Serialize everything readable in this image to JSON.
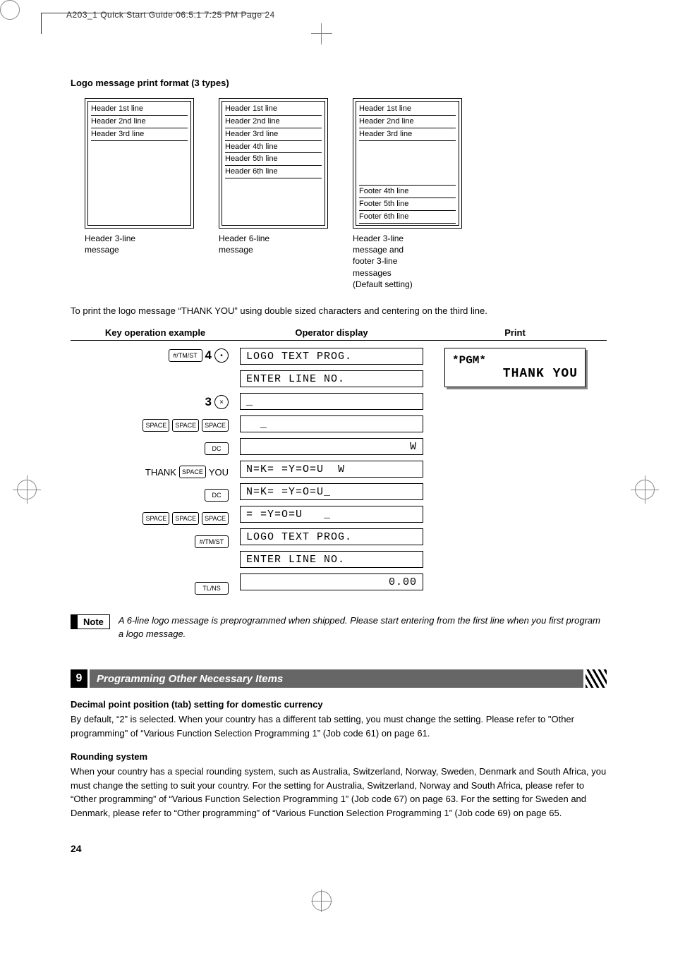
{
  "meta": {
    "top_line": "A203_1 Quick Start Guide  06.5.1 7:25 PM  Page 24"
  },
  "title_logo_format": "Logo message print format (3 types)",
  "formats": {
    "a": {
      "lines": [
        "Header 1st line",
        "Header 2nd line",
        "Header 3rd line"
      ],
      "caption": "Header 3-line\nmessage"
    },
    "b": {
      "lines": [
        "Header 1st line",
        "Header 2nd line",
        "Header 3rd line",
        "Header 4th line",
        "Header 5th line",
        "Header 6th line"
      ],
      "caption": "Header 6-line\nmessage"
    },
    "c": {
      "top": [
        "Header 1st line",
        "Header 2nd line",
        "Header 3rd line"
      ],
      "bottom": [
        "Footer 4th line",
        "Footer 5th line",
        "Footer 6th line"
      ],
      "caption": "Header 3-line\nmessage and\nfooter 3-line\nmessages\n(Default setting)"
    }
  },
  "intro_text": "To print the logo message “THANK YOU” using double sized characters and centering on the third line.",
  "table": {
    "headers": {
      "key": "Key operation example",
      "disp": "Operator display",
      "print": "Print"
    },
    "rows": [
      {
        "keys": [
          {
            "t": "btn",
            "v": "#/TM/ST",
            "wide": true
          },
          {
            "t": "num",
            "v": "4"
          },
          {
            "t": "circ",
            "v": "•"
          }
        ],
        "disp": "LOGO TEXT PROG."
      },
      {
        "keys": [],
        "disp": "ENTER LINE NO."
      },
      {
        "keys": [
          {
            "t": "num",
            "v": "3"
          },
          {
            "t": "circ",
            "v": "×"
          }
        ],
        "disp": "_"
      },
      {
        "keys": [
          {
            "t": "btn",
            "v": "SPACE"
          },
          {
            "t": "btn",
            "v": "SPACE"
          },
          {
            "t": "btn",
            "v": "SPACE"
          }
        ],
        "disp": "  _"
      },
      {
        "keys": [
          {
            "t": "btn",
            "v": "DC"
          }
        ],
        "disp": "              W",
        "right": true
      },
      {
        "keys": [
          {
            "t": "text",
            "v": "THANK"
          },
          {
            "t": "btn",
            "v": "SPACE"
          },
          {
            "t": "text",
            "v": "YOU"
          }
        ],
        "disp": "N=K= =Y=O=U  W"
      },
      {
        "keys": [
          {
            "t": "btn",
            "v": "DC"
          }
        ],
        "disp": "N=K= =Y=O=U_"
      },
      {
        "keys": [
          {
            "t": "btn",
            "v": "SPACE"
          },
          {
            "t": "btn",
            "v": "SPACE"
          },
          {
            "t": "btn",
            "v": "SPACE"
          }
        ],
        "disp": "= =Y=O=U   _"
      },
      {
        "keys": [
          {
            "t": "btn",
            "v": "#/TM/ST",
            "wide": true
          }
        ],
        "disp": "LOGO TEXT PROG."
      },
      {
        "keys": [],
        "disp": "ENTER LINE NO."
      },
      {
        "keys": [
          {
            "t": "btn",
            "v": "TL/NS",
            "wide": true
          }
        ],
        "disp": "0.00",
        "right": true
      }
    ],
    "receipt": {
      "line1": "*PGM*",
      "line2": "THANK YOU"
    }
  },
  "note": {
    "badge": "Note",
    "text": "A 6-line logo message is preprogrammed when shipped.  Please start entering from the first line when you first program a logo message."
  },
  "section9": {
    "num": "9",
    "title": "Programming Other Necessary Items",
    "sub1_title": "Decimal point position (tab) setting for domestic currency",
    "sub1_body": "By default, “2” is selected.  When your country has a different tab setting, you must change the setting.  Please refer to \"Other programming\" of “Various Function Selection Programming 1” (Job code 61) on page 61.",
    "sub2_title": "Rounding system",
    "sub2_body": "When your country has a special rounding system, such as Australia, Switzerland, Norway, Sweden, Denmark and South Africa, you must change the setting to suit your country. For the setting for Australia, Switzerland, Norway and South Africa, please refer to “Other programming” of “Various Function Selection Programming 1” (Job code 67) on page 63.  For the setting for Sweden and Denmark, please refer to “Other programming” of “Various Function Selection Programming 1” (Job code 69) on page 65."
  },
  "page_number": "24",
  "colors": {
    "black": "#000000",
    "section_bg": "#666666",
    "shadow": "#888888"
  }
}
